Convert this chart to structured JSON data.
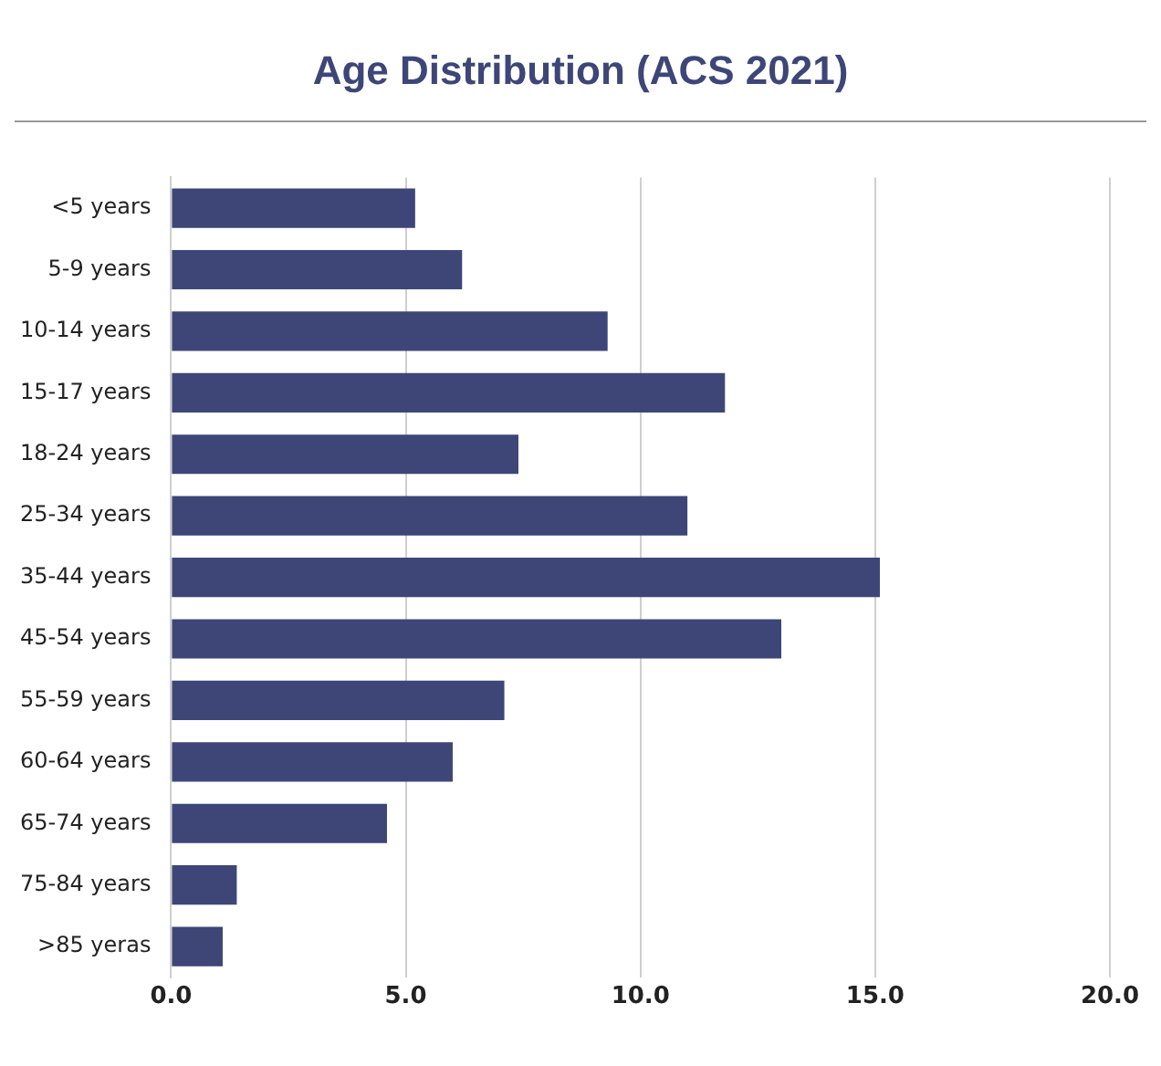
{
  "chart_data": {
    "type": "bar",
    "title": "Age Distribution (ACS 2021)",
    "orientation": "horizontal",
    "categories": [
      "<5 years",
      "5-9 years",
      "10-14 years",
      "15-17 years",
      "18-24 years",
      "25-34 years",
      "35-44 years",
      "45-54 years",
      "55-59 years",
      "60-64 years",
      "65-74 years",
      "75-84 years",
      ">85 yeras"
    ],
    "values": [
      5.2,
      6.2,
      9.3,
      11.8,
      7.4,
      11.0,
      15.1,
      13.0,
      7.1,
      6.0,
      4.6,
      1.4,
      1.1
    ],
    "color": "#3d4677",
    "xlim": [
      0,
      20
    ],
    "xticks": [
      {
        "value": 0,
        "label": "0.0"
      },
      {
        "value": 5,
        "label": "5.0"
      },
      {
        "value": 10,
        "label": "10.0"
      },
      {
        "value": 15,
        "label": "15.0"
      },
      {
        "value": 20,
        "label": "20.0"
      }
    ],
    "grid": "x"
  }
}
